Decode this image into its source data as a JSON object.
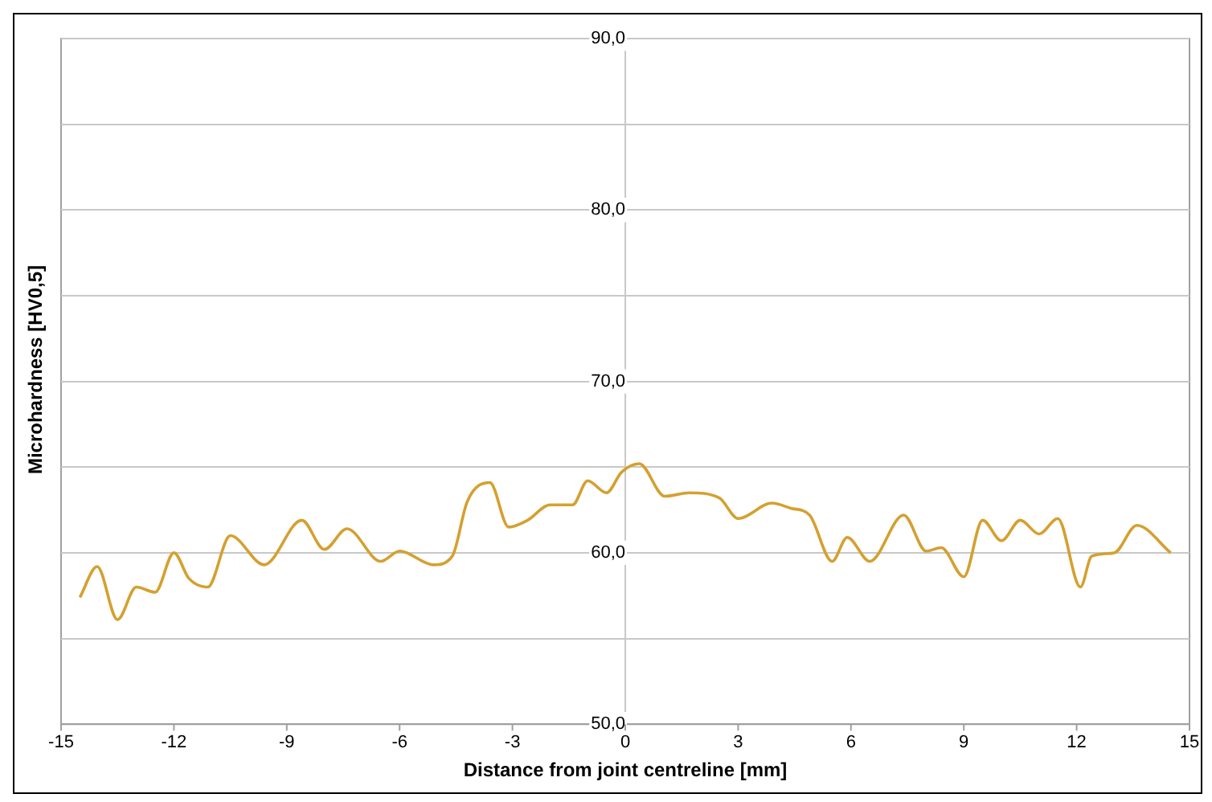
{
  "chart_data": {
    "type": "line",
    "xlabel": "Distance from joint centreline [mm]",
    "ylabel": "Microhardness [HV0,5]",
    "xlim": [
      -15,
      15
    ],
    "xticks": [
      -15,
      -12,
      -9,
      -6,
      -3,
      0,
      3,
      6,
      9,
      12,
      15
    ],
    "ylim": [
      50,
      90
    ],
    "yticks": [
      {
        "value": 50,
        "label": "50,0"
      },
      {
        "value": 55,
        "label": null
      },
      {
        "value": 60,
        "label": "60,0"
      },
      {
        "value": 65,
        "label": null
      },
      {
        "value": 70,
        "label": "70,0"
      },
      {
        "value": 75,
        "label": null
      },
      {
        "value": 80,
        "label": "80,0"
      },
      {
        "value": 85,
        "label": null
      },
      {
        "value": 90,
        "label": "90,0"
      }
    ],
    "grid": "y",
    "legend": false,
    "marker": "none",
    "line_style": "solid",
    "series": [
      {
        "color": "#d4a030",
        "x": [
          -14.5,
          -14.04,
          -13.5,
          -13.0,
          -12.5,
          -12.0,
          -11.6,
          -11.1,
          -10.5,
          -9.6,
          -8.6,
          -8.0,
          -7.4,
          -6.5,
          -6.0,
          -5.1,
          -4.6,
          -4.2,
          -3.6,
          -3.1,
          -2.6,
          -2.0,
          -1.4,
          -1.0,
          -0.5,
          -0.1,
          0.37,
          1.05,
          1.7,
          2.5,
          3.0,
          3.9,
          4.4,
          4.9,
          5.5,
          5.9,
          6.5,
          7.4,
          8.0,
          8.4,
          9.0,
          9.5,
          10.0,
          10.5,
          11.0,
          11.5,
          12.1,
          12.4,
          13.0,
          13.6,
          14.5
        ],
        "values": [
          57.4,
          59.2,
          56.1,
          58.0,
          57.7,
          60.0,
          58.5,
          58.0,
          61.0,
          59.3,
          61.9,
          60.2,
          61.4,
          59.5,
          60.1,
          59.3,
          59.8,
          63.0,
          64.1,
          61.5,
          61.9,
          62.8,
          62.8,
          64.2,
          63.5,
          64.7,
          65.2,
          63.3,
          63.5,
          63.2,
          62.0,
          62.9,
          62.6,
          62.2,
          59.5,
          60.9,
          59.5,
          62.2,
          60.1,
          60.3,
          58.6,
          61.9,
          60.7,
          61.9,
          61.1,
          62.0,
          58.0,
          59.8,
          60.0,
          61.6,
          60.0
        ]
      }
    ]
  }
}
